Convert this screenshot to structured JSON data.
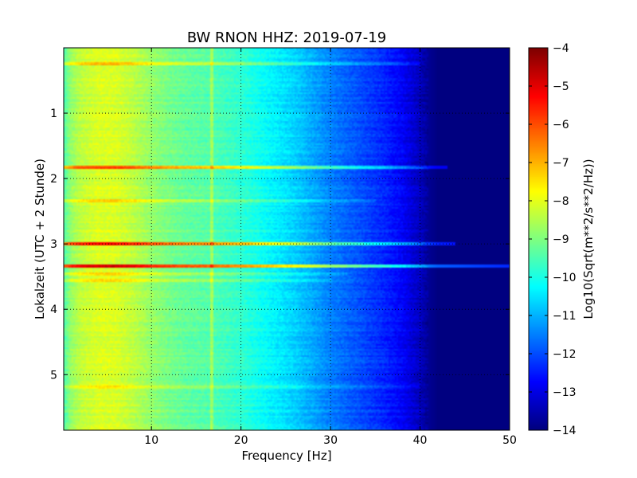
{
  "chart_data": {
    "type": "heatmap",
    "title": "BW RNON HHZ: 2019-07-19",
    "xlabel": "Frequency [Hz]",
    "ylabel": "Lokalzeit (UTC + 2 Stunde)",
    "colorbar_label": "Log10(Sqrt(m**2/s**2/Hz))",
    "colormap": "jet",
    "grid": true,
    "xlim": [
      0.2,
      50
    ],
    "ylim": [
      0.0,
      5.85
    ],
    "y_inverted": true,
    "clim": [
      -14,
      -4
    ],
    "x_ticks": [
      10,
      20,
      30,
      40,
      50
    ],
    "y_ticks": [
      1,
      2,
      3,
      4,
      5
    ],
    "colorbar_ticks": [
      -4,
      -5,
      -6,
      -7,
      -8,
      -9,
      -10,
      -11,
      -12,
      -13,
      -14
    ],
    "baseline_spectrum": {
      "frequency_hz": [
        0.2,
        1,
        2,
        4,
        6,
        8,
        10,
        12,
        14,
        16,
        18,
        20,
        22,
        24,
        26,
        28,
        30,
        32,
        34,
        36,
        38,
        39,
        40,
        41,
        42,
        50
      ],
      "log10_amplitude": [
        -9.5,
        -8.8,
        -8.4,
        -8.1,
        -8.1,
        -8.4,
        -8.8,
        -9.1,
        -9.3,
        -9.4,
        -9.6,
        -9.8,
        -10.1,
        -10.4,
        -10.7,
        -11.1,
        -11.5,
        -11.8,
        -12.1,
        -12.4,
        -12.8,
        -13.1,
        -13.4,
        -13.8,
        -14.0,
        -14.0
      ]
    },
    "events": [
      {
        "time_h": 0.25,
        "f_max_hz": 40,
        "boost": 1.0
      },
      {
        "time_h": 1.83,
        "f_max_hz": 43,
        "boost": 2.2
      },
      {
        "time_h": 2.35,
        "f_max_hz": 35,
        "boost": 0.8
      },
      {
        "time_h": 3.0,
        "f_max_hz": 44,
        "boost": 2.8
      },
      {
        "time_h": 3.34,
        "f_max_hz": 50,
        "boost": 3.2
      },
      {
        "time_h": 3.45,
        "f_max_hz": 32,
        "boost": 0.7
      },
      {
        "time_h": 3.55,
        "f_max_hz": 30,
        "boost": 0.6
      },
      {
        "time_h": 5.2,
        "f_max_hz": 40,
        "boost": 0.6
      }
    ]
  }
}
